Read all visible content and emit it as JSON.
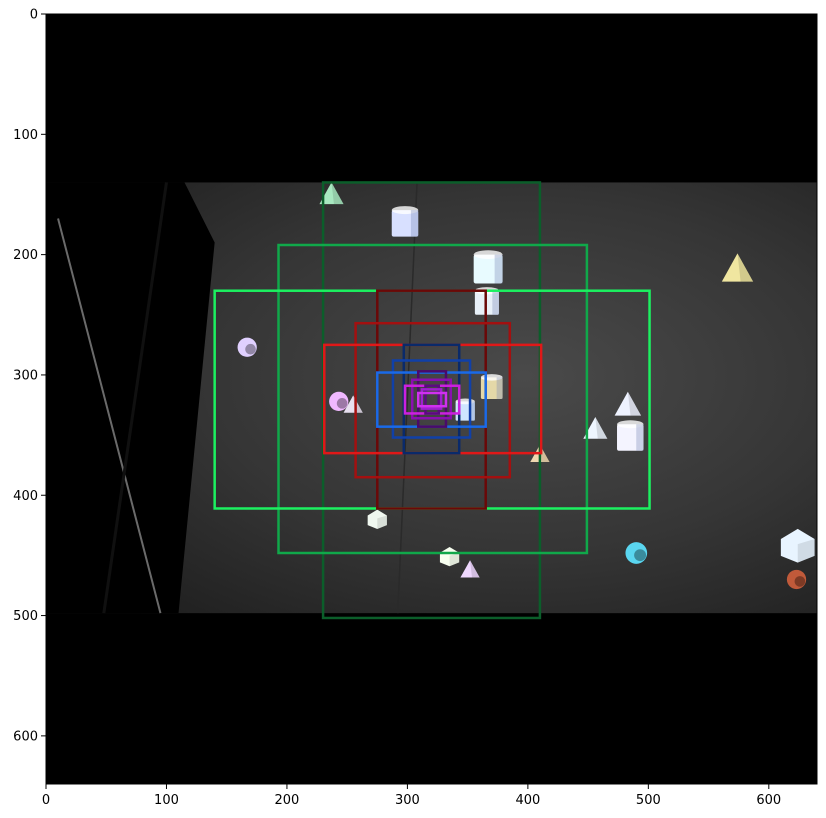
{
  "chart_data": {
    "type": "image",
    "title": "",
    "xlabel": "",
    "ylabel": "",
    "xlim": [
      0,
      640
    ],
    "ylim": [
      640,
      0
    ],
    "grid": false,
    "x_ticks": [
      "0",
      "100",
      "200",
      "300",
      "400",
      "500",
      "600"
    ],
    "y_ticks": [
      "0",
      "100",
      "200",
      "300",
      "400",
      "500",
      "600"
    ],
    "image": {
      "background": "#000000",
      "photo_region": {
        "x": [
          0,
          640
        ],
        "y": [
          140,
          498
        ]
      }
    },
    "anchor_boxes": [
      {
        "color": "#0b5e2a",
        "x0": 230,
        "y0": 140,
        "x1": 410,
        "y1": 502
      },
      {
        "color": "#10a84a",
        "x0": 193,
        "y0": 192,
        "x1": 449,
        "y1": 448
      },
      {
        "color": "#1cf060",
        "x0": 140,
        "y0": 230,
        "x1": 501,
        "y1": 411
      },
      {
        "color": "#6a0808",
        "x0": 275,
        "y0": 230,
        "x1": 365,
        "y1": 411
      },
      {
        "color": "#a31010",
        "x0": 257,
        "y0": 257,
        "x1": 385,
        "y1": 385
      },
      {
        "color": "#e01818",
        "x0": 231,
        "y0": 275,
        "x1": 411,
        "y1": 365
      },
      {
        "color": "#0a2a6a",
        "x0": 297,
        "y0": 275,
        "x1": 343,
        "y1": 365
      },
      {
        "color": "#1040a8",
        "x0": 288,
        "y0": 288,
        "x1": 352,
        "y1": 352
      },
      {
        "color": "#1a6ae8",
        "x0": 275,
        "y0": 298,
        "x1": 365,
        "y1": 343
      },
      {
        "color": "#4a0a6a",
        "x0": 309,
        "y0": 297,
        "x1": 332,
        "y1": 343
      },
      {
        "color": "#8a10b0",
        "x0": 304,
        "y0": 304,
        "x1": 336,
        "y1": 336
      },
      {
        "color": "#cc20e0",
        "x0": 298,
        "y0": 309,
        "x1": 343,
        "y1": 332
      },
      {
        "color": "#5a0a80",
        "x0": 315,
        "y0": 309,
        "x1": 326,
        "y1": 332
      },
      {
        "color": "#a020d0",
        "x0": 312,
        "y0": 312,
        "x1": 328,
        "y1": 328
      },
      {
        "color": "#d030f0",
        "x0": 309,
        "y0": 315,
        "x1": 332,
        "y1": 326
      }
    ],
    "objects": [
      {
        "shape": "cone",
        "x": 237,
        "y": 150,
        "s": 10,
        "color": "#a8e8c0"
      },
      {
        "shape": "cylinder",
        "x": 298,
        "y": 174,
        "s": 11,
        "color": "#d8e0ff"
      },
      {
        "shape": "cylinder",
        "x": 367,
        "y": 212,
        "s": 12,
        "color": "#e8fbff"
      },
      {
        "shape": "cylinder",
        "x": 366,
        "y": 240,
        "s": 10,
        "color": "#e8f0f8"
      },
      {
        "shape": "cone",
        "x": 574,
        "y": 212,
        "s": 13,
        "color": "#f0e6a0"
      },
      {
        "shape": "sphere",
        "x": 167,
        "y": 277,
        "s": 8,
        "color": "#e0d0ff"
      },
      {
        "shape": "sphere",
        "x": 243,
        "y": 322,
        "s": 8,
        "color": "#f0b8ff"
      },
      {
        "shape": "cone",
        "x": 255,
        "y": 325,
        "s": 8,
        "color": "#e8e0f0"
      },
      {
        "shape": "cone",
        "x": 483,
        "y": 325,
        "s": 11,
        "color": "#eef2ff"
      },
      {
        "shape": "cone",
        "x": 456,
        "y": 345,
        "s": 10,
        "color": "#eef6ff"
      },
      {
        "shape": "cylinder",
        "x": 485,
        "y": 352,
        "s": 11,
        "color": "#f4f4ff"
      },
      {
        "shape": "cone",
        "x": 410,
        "y": 366,
        "s": 8,
        "color": "#f0d8b0"
      },
      {
        "shape": "cube",
        "x": 275,
        "y": 420,
        "s": 8,
        "color": "#f0f8f0"
      },
      {
        "shape": "sphere",
        "x": 490,
        "y": 448,
        "s": 9,
        "color": "#5ad6f0"
      },
      {
        "shape": "cube",
        "x": 624,
        "y": 442,
        "s": 14,
        "color": "#e8f4ff"
      },
      {
        "shape": "cube",
        "x": 335,
        "y": 451,
        "s": 8,
        "color": "#f8fff0"
      },
      {
        "shape": "cone",
        "x": 352,
        "y": 462,
        "s": 8,
        "color": "#f0d8ff"
      },
      {
        "shape": "sphere",
        "x": 623,
        "y": 470,
        "s": 8,
        "color": "#c05a3a"
      },
      {
        "shape": "cylinder",
        "x": 348,
        "y": 330,
        "s": 8,
        "color": "#cfe6ff"
      },
      {
        "shape": "cylinder",
        "x": 370,
        "y": 311,
        "s": 9,
        "color": "#e4d8a8"
      }
    ]
  }
}
